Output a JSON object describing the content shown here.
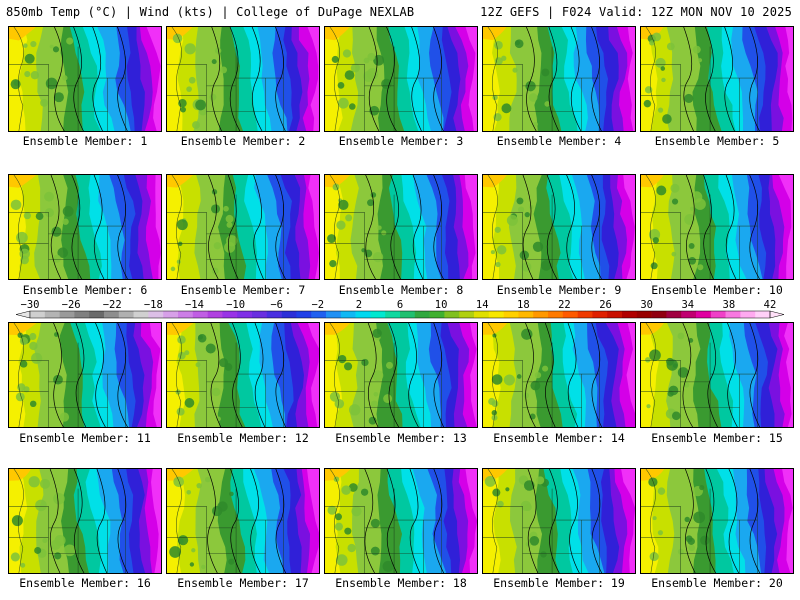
{
  "header": {
    "title_left": "850mb Temp (°C) | Wind (kts) | College of DuPage NEXLAB",
    "title_right": "12Z GEFS | F024 Valid: 12Z MON NOV 10 2025"
  },
  "members": [
    {
      "label": "Ensemble Member: 1"
    },
    {
      "label": "Ensemble Member: 2"
    },
    {
      "label": "Ensemble Member: 3"
    },
    {
      "label": "Ensemble Member: 4"
    },
    {
      "label": "Ensemble Member: 5"
    },
    {
      "label": "Ensemble Member: 6"
    },
    {
      "label": "Ensemble Member: 7"
    },
    {
      "label": "Ensemble Member: 8"
    },
    {
      "label": "Ensemble Member: 9"
    },
    {
      "label": "Ensemble Member: 10"
    },
    {
      "label": "Ensemble Member: 11"
    },
    {
      "label": "Ensemble Member: 12"
    },
    {
      "label": "Ensemble Member: 13"
    },
    {
      "label": "Ensemble Member: 14"
    },
    {
      "label": "Ensemble Member: 15"
    },
    {
      "label": "Ensemble Member: 16"
    },
    {
      "label": "Ensemble Member: 17"
    },
    {
      "label": "Ensemble Member: 18"
    },
    {
      "label": "Ensemble Member: 19"
    },
    {
      "label": "Ensemble Member: 20"
    }
  ],
  "colorbar": {
    "ticks": [
      "−30",
      "−26",
      "−22",
      "−18",
      "−14",
      "−10",
      "−6",
      "−2",
      "2",
      "6",
      "10",
      "14",
      "18",
      "22",
      "26",
      "30",
      "34",
      "38",
      "42"
    ],
    "colors": [
      "#cfcfcf",
      "#b4b4b4",
      "#9a9a9a",
      "#808080",
      "#6a6a6a",
      "#8e8e8e",
      "#b0b0b0",
      "#d0d0d0",
      "#dcbfe6",
      "#d7a0e8",
      "#cc7ee6",
      "#c05ee4",
      "#b040e0",
      "#9933e6",
      "#8030e6",
      "#6a30e0",
      "#4a30e0",
      "#2c30d8",
      "#2040e8",
      "#2060f0",
      "#2090f4",
      "#10b8f4",
      "#00d8f0",
      "#00e8d0",
      "#10d8a0",
      "#20c070",
      "#30a840",
      "#40b030",
      "#80c020",
      "#b0d010",
      "#e0e000",
      "#f8e800",
      "#ffd000",
      "#ffb800",
      "#ff9800",
      "#ff7a00",
      "#ff5a00",
      "#f03a00",
      "#e02000",
      "#c81000",
      "#b00000",
      "#980000",
      "#900010",
      "#a00040",
      "#c00070",
      "#e000a0",
      "#f040c8",
      "#f878e0",
      "#ffaaf0",
      "#ffd0f8"
    ],
    "scale_colors": [
      "#f5f000",
      "#c8e000",
      "#8cc83c",
      "#3a9a30",
      "#00c8a0",
      "#00e0e8",
      "#1aa8f0",
      "#2050e8",
      "#3020d8",
      "#7a10e0",
      "#d400e8",
      "#f030f8"
    ]
  }
}
